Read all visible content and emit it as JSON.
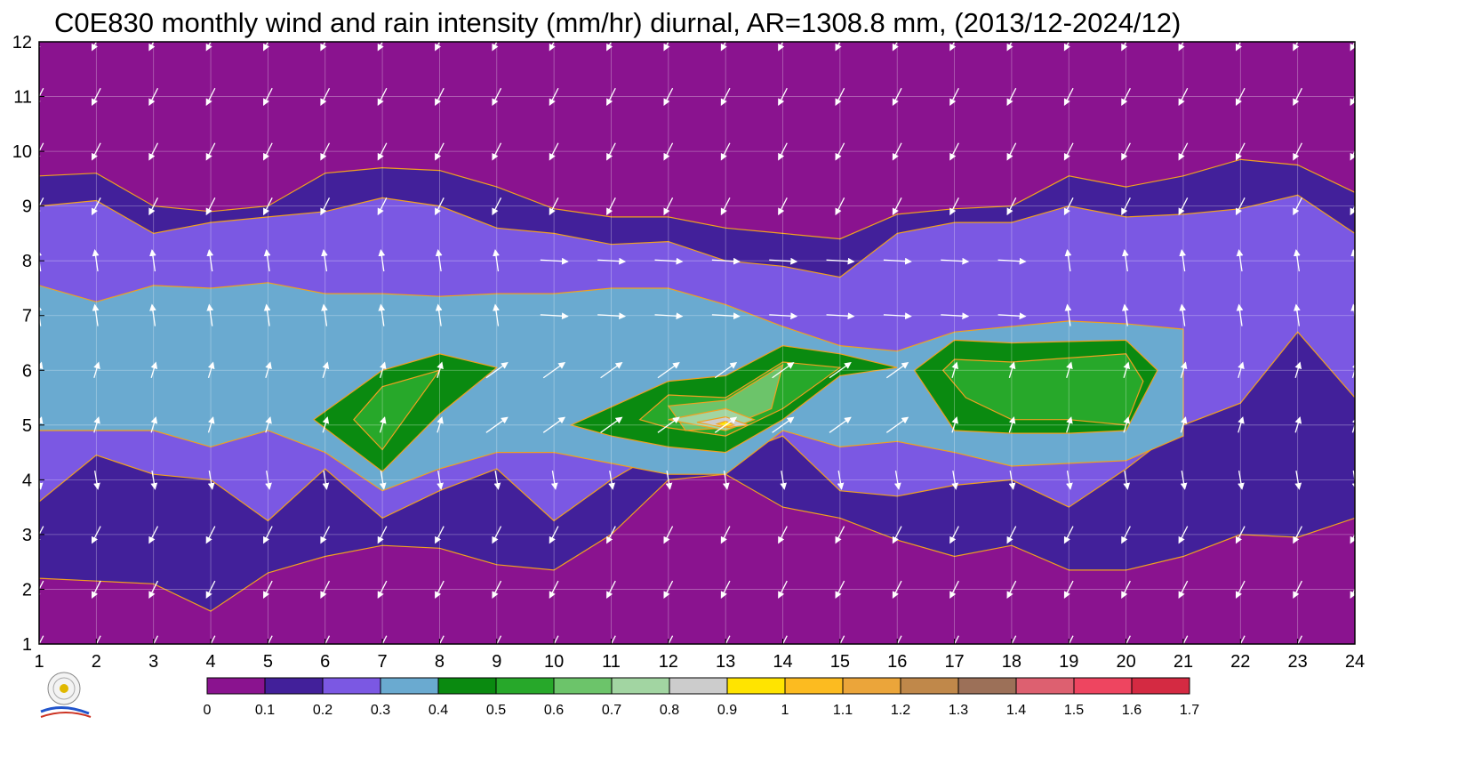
{
  "chart_data": {
    "type": "contour",
    "title": "C0E830 monthly wind and rain intensity (mm/hr) diurnal, AR=1308.8 mm, (2013/12-2024/12)",
    "x_ticks": [
      "1",
      "2",
      "3",
      "4",
      "5",
      "6",
      "7",
      "8",
      "9",
      "10",
      "11",
      "12",
      "13",
      "14",
      "15",
      "16",
      "17",
      "18",
      "19",
      "20",
      "21",
      "22",
      "23",
      "24"
    ],
    "y_ticks": [
      "1",
      "2",
      "3",
      "4",
      "5",
      "6",
      "7",
      "8",
      "9",
      "10",
      "11",
      "12"
    ],
    "xlim": [
      1,
      24
    ],
    "ylim": [
      1,
      12
    ],
    "grid": true,
    "colorbar": {
      "labels": [
        "0",
        "0.1",
        "0.2",
        "0.3",
        "0.4",
        "0.5",
        "0.6",
        "0.7",
        "0.8",
        "0.9",
        "1",
        "1.1",
        "1.2",
        "1.3",
        "1.4",
        "1.5",
        "1.6",
        "1.7"
      ],
      "colors": [
        "#8a138f",
        "#42209a",
        "#7b58e3",
        "#6aaad0",
        "#0a8a10",
        "#27a82a",
        "#6cc46a",
        "#a2d5a2",
        "#cccccc",
        "#ffe400",
        "#fcbb20",
        "#eba53a",
        "#c0884a",
        "#9c7058",
        "#dd6070",
        "#ee4560",
        "#d42a42"
      ]
    },
    "series": [
      {
        "level": "0.1",
        "color": "#42209a",
        "points": [
          [
            1,
            9.55
          ],
          [
            2,
            9.6
          ],
          [
            3,
            9.0
          ],
          [
            4,
            8.9
          ],
          [
            5,
            9.0
          ],
          [
            6,
            9.6
          ],
          [
            7,
            9.7
          ],
          [
            8,
            9.65
          ],
          [
            9,
            9.35
          ],
          [
            10,
            8.95
          ],
          [
            11,
            8.8
          ],
          [
            12,
            8.8
          ],
          [
            13,
            8.6
          ],
          [
            14,
            8.5
          ],
          [
            15,
            8.4
          ],
          [
            16,
            8.85
          ],
          [
            17,
            8.95
          ],
          [
            18,
            9.0
          ],
          [
            19,
            9.55
          ],
          [
            20,
            9.35
          ],
          [
            21,
            9.55
          ],
          [
            22,
            9.85
          ],
          [
            23,
            9.75
          ],
          [
            24,
            9.25
          ],
          [
            24,
            3.3
          ],
          [
            23,
            2.95
          ],
          [
            22,
            3.0
          ],
          [
            21,
            2.6
          ],
          [
            20,
            2.35
          ],
          [
            19,
            2.35
          ],
          [
            18,
            2.8
          ],
          [
            17,
            2.6
          ],
          [
            16,
            2.9
          ],
          [
            15,
            3.3
          ],
          [
            14,
            3.5
          ],
          [
            13,
            4.1
          ],
          [
            12,
            4.0
          ],
          [
            11,
            3.0
          ],
          [
            10,
            2.35
          ],
          [
            9,
            2.45
          ],
          [
            8,
            2.75
          ],
          [
            7,
            2.8
          ],
          [
            6,
            2.6
          ],
          [
            5,
            2.3
          ],
          [
            4,
            1.6
          ],
          [
            3,
            2.1
          ],
          [
            2,
            2.15
          ],
          [
            1,
            2.2
          ]
        ]
      },
      {
        "level": "0.2",
        "color": "#7b58e3",
        "points": [
          [
            1,
            9.0
          ],
          [
            2,
            9.1
          ],
          [
            3,
            8.5
          ],
          [
            4,
            8.7
          ],
          [
            5,
            8.8
          ],
          [
            6,
            8.9
          ],
          [
            7,
            9.15
          ],
          [
            8,
            9.0
          ],
          [
            9,
            8.6
          ],
          [
            10,
            8.5
          ],
          [
            11,
            8.3
          ],
          [
            12,
            8.35
          ],
          [
            13,
            8.0
          ],
          [
            14,
            7.9
          ],
          [
            15,
            7.7
          ],
          [
            16,
            8.5
          ],
          [
            17,
            8.7
          ],
          [
            18,
            8.7
          ],
          [
            19,
            9.0
          ],
          [
            20,
            8.8
          ],
          [
            21,
            8.85
          ],
          [
            22,
            8.95
          ],
          [
            23,
            9.2
          ],
          [
            24,
            8.5
          ],
          [
            24,
            5.5
          ],
          [
            23,
            6.7
          ],
          [
            22,
            5.4
          ],
          [
            21,
            5.0
          ],
          [
            20,
            4.2
          ],
          [
            19,
            3.5
          ],
          [
            18,
            4.0
          ],
          [
            17,
            3.9
          ],
          [
            16,
            3.7
          ],
          [
            15,
            3.8
          ],
          [
            14,
            4.8
          ],
          [
            13,
            4.4
          ],
          [
            12,
            4.6
          ],
          [
            11,
            4.0
          ],
          [
            10,
            3.25
          ],
          [
            9,
            4.2
          ],
          [
            8,
            3.8
          ],
          [
            7,
            3.3
          ],
          [
            6,
            4.2
          ],
          [
            5,
            3.25
          ],
          [
            4,
            4.0
          ],
          [
            3,
            4.1
          ],
          [
            2,
            4.45
          ],
          [
            1,
            3.6
          ]
        ]
      },
      {
        "level": "0.3",
        "color": "#6aaad0",
        "points": [
          [
            1,
            7.55
          ],
          [
            2,
            7.25
          ],
          [
            3,
            7.55
          ],
          [
            4,
            7.5
          ],
          [
            5,
            7.6
          ],
          [
            6,
            7.4
          ],
          [
            7,
            7.4
          ],
          [
            8,
            7.35
          ],
          [
            9,
            7.4
          ],
          [
            10,
            7.4
          ],
          [
            11,
            7.5
          ],
          [
            12,
            7.5
          ],
          [
            13,
            7.2
          ],
          [
            14,
            6.8
          ],
          [
            15,
            6.45
          ],
          [
            16,
            6.35
          ],
          [
            17,
            6.7
          ],
          [
            18,
            6.8
          ],
          [
            19,
            6.9
          ],
          [
            20,
            6.85
          ],
          [
            21,
            6.75
          ],
          [
            21,
            4.8
          ],
          [
            20,
            4.35
          ],
          [
            19,
            4.3
          ],
          [
            18,
            4.25
          ],
          [
            17,
            4.5
          ],
          [
            16,
            4.7
          ],
          [
            15,
            4.6
          ],
          [
            14,
            4.9
          ],
          [
            13,
            4.1
          ],
          [
            12,
            4.1
          ],
          [
            11,
            4.3
          ],
          [
            10,
            4.5
          ],
          [
            9,
            4.5
          ],
          [
            8,
            4.2
          ],
          [
            7,
            3.8
          ],
          [
            6,
            4.5
          ],
          [
            5,
            4.9
          ],
          [
            4,
            4.6
          ],
          [
            3,
            4.9
          ],
          [
            2,
            4.9
          ],
          [
            1,
            4.9
          ]
        ]
      },
      {
        "level": "0.4",
        "color": "#0a8a10",
        "points": [
          [
            5.8,
            5.1
          ],
          [
            7,
            6.0
          ],
          [
            8,
            6.3
          ],
          [
            9,
            6.05
          ],
          [
            8,
            5.2
          ],
          [
            7,
            4.15
          ]
        ]
      },
      {
        "level": "0.4",
        "color": "#0a8a10",
        "points": [
          [
            10.3,
            5.0
          ],
          [
            12,
            5.8
          ],
          [
            13,
            5.9
          ],
          [
            14,
            6.45
          ],
          [
            15,
            6.3
          ],
          [
            16,
            6.05
          ],
          [
            15,
            5.9
          ],
          [
            14,
            5.1
          ],
          [
            13,
            4.5
          ],
          [
            12,
            4.6
          ],
          [
            11,
            4.8
          ]
        ]
      },
      {
        "level": "0.4",
        "color": "#0a8a10",
        "points": [
          [
            16.3,
            6.0
          ],
          [
            17,
            6.55
          ],
          [
            18,
            6.5
          ],
          [
            20,
            6.55
          ],
          [
            20.55,
            6.0
          ],
          [
            20,
            4.9
          ],
          [
            19,
            4.85
          ],
          [
            18,
            4.85
          ],
          [
            17,
            4.9
          ]
        ]
      },
      {
        "level": "0.5",
        "color": "#27a82a",
        "points": [
          [
            6.5,
            5.1
          ],
          [
            7,
            5.7
          ],
          [
            8,
            6.0
          ],
          [
            7,
            4.55
          ]
        ]
      },
      {
        "level": "0.5",
        "color": "#27a82a",
        "points": [
          [
            11.5,
            5.1
          ],
          [
            12,
            5.55
          ],
          [
            13,
            5.5
          ],
          [
            14,
            6.15
          ],
          [
            15,
            6.05
          ],
          [
            14,
            5.3
          ],
          [
            13,
            4.8
          ],
          [
            12,
            4.95
          ]
        ]
      },
      {
        "level": "0.5",
        "color": "#27a82a",
        "points": [
          [
            16.8,
            6.0
          ],
          [
            17,
            6.2
          ],
          [
            18,
            6.15
          ],
          [
            20,
            6.3
          ],
          [
            20.3,
            5.8
          ],
          [
            20,
            5.0
          ],
          [
            19,
            5.1
          ],
          [
            18,
            5.1
          ],
          [
            17.2,
            5.5
          ]
        ]
      },
      {
        "level": "0.6",
        "color": "#6cc46a",
        "points": [
          [
            12,
            5.35
          ],
          [
            13,
            5.45
          ],
          [
            14,
            6.1
          ],
          [
            13.8,
            5.3
          ],
          [
            13,
            4.95
          ],
          [
            12.3,
            4.9
          ]
        ]
      },
      {
        "level": "0.7",
        "color": "#a2d5a2",
        "points": [
          [
            12,
            5.1
          ],
          [
            12.5,
            5.2
          ],
          [
            13,
            5.3
          ],
          [
            13.5,
            5.1
          ],
          [
            13,
            4.9
          ]
        ]
      },
      {
        "level": "0.8",
        "color": "#cccccc",
        "points": [
          [
            12.5,
            5.05
          ],
          [
            13,
            5.15
          ],
          [
            13.4,
            5.0
          ],
          [
            13,
            4.95
          ]
        ]
      },
      {
        "level": "0.9",
        "color": "#ffe400",
        "points": [
          [
            12.85,
            5.02
          ],
          [
            13,
            5.07
          ],
          [
            13.15,
            5.0
          ],
          [
            13,
            4.97
          ]
        ]
      }
    ]
  }
}
